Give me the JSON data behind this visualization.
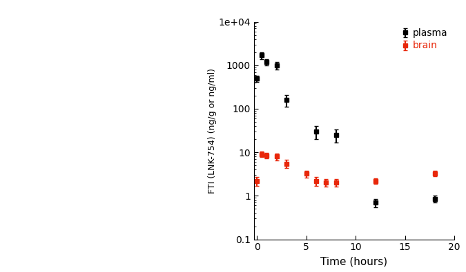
{
  "plasma_x": [
    0,
    0.5,
    1,
    2,
    3,
    6,
    8,
    12,
    18
  ],
  "plasma_y": [
    500,
    1700,
    1200,
    1000,
    160,
    30,
    25,
    0.7,
    0.85
  ],
  "plasma_yerr_low": [
    80,
    300,
    200,
    200,
    50,
    10,
    8,
    0.15,
    0.15
  ],
  "plasma_yerr_high": [
    80,
    300,
    200,
    200,
    50,
    10,
    8,
    0.15,
    0.15
  ],
  "brain_x": [
    0,
    0.5,
    1,
    2,
    3,
    5,
    6,
    7,
    8,
    12,
    18
  ],
  "brain_y": [
    2.2,
    9.0,
    8.5,
    8.0,
    5.5,
    3.2,
    2.2,
    2.0,
    2.0,
    2.2,
    3.3
  ],
  "brain_yerr_low": [
    0.5,
    1.3,
    1.2,
    1.5,
    1.2,
    0.6,
    0.5,
    0.4,
    0.4,
    0.3,
    0.5
  ],
  "brain_yerr_high": [
    0.5,
    1.3,
    1.2,
    1.5,
    1.2,
    0.6,
    0.5,
    0.4,
    0.4,
    0.3,
    0.5
  ],
  "plasma_color": "#000000",
  "brain_color": "#e8270a",
  "ylabel": "FTI (LNK-754) (ng/g or ng/ml)",
  "xlabel": "Time (hours)",
  "ylim": [
    0.1,
    10000
  ],
  "xlim": [
    -0.3,
    20
  ],
  "xticks": [
    0,
    5,
    10,
    15,
    20
  ],
  "legend_plasma": "plasma",
  "legend_brain": "brain",
  "marker": "s",
  "markersize": 4.5,
  "linewidth": 1.5,
  "figwidth": 6.75,
  "figheight": 3.95,
  "fig_dpi": 100
}
